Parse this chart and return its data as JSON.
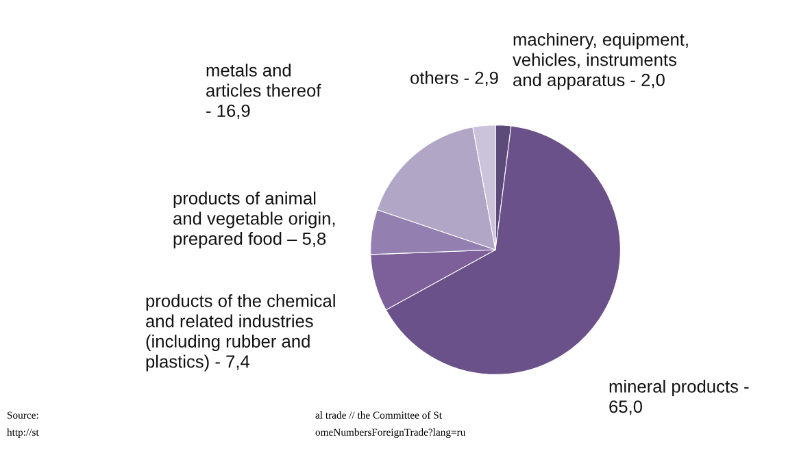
{
  "chart_data": {
    "type": "pie",
    "categories": [
      "machinery, equipment,\nvehicles, instruments\nand apparatus - 2,0",
      "mineral products -\n65,0",
      "products of the chemical\nand related industries\n(including rubber and\nplastics) - 7,4",
      "products of animal\nand vegetable origin,\nprepared food – 5,8",
      "metals and\narticles thereof\n- 16,9",
      "others - 2,9"
    ],
    "values": [
      2.0,
      65.0,
      7.4,
      5.8,
      16.9,
      2.9
    ],
    "colors": [
      "#5b4a7a",
      "#6b5189",
      "#7d5f99",
      "#9480b0",
      "#b1a6c6",
      "#cbc3d9"
    ],
    "annotations": [
      "Source:",
      "al trade // the Committee of St",
      "http://st",
      "omeNumbersForeignTrade?lang=ru"
    ]
  }
}
